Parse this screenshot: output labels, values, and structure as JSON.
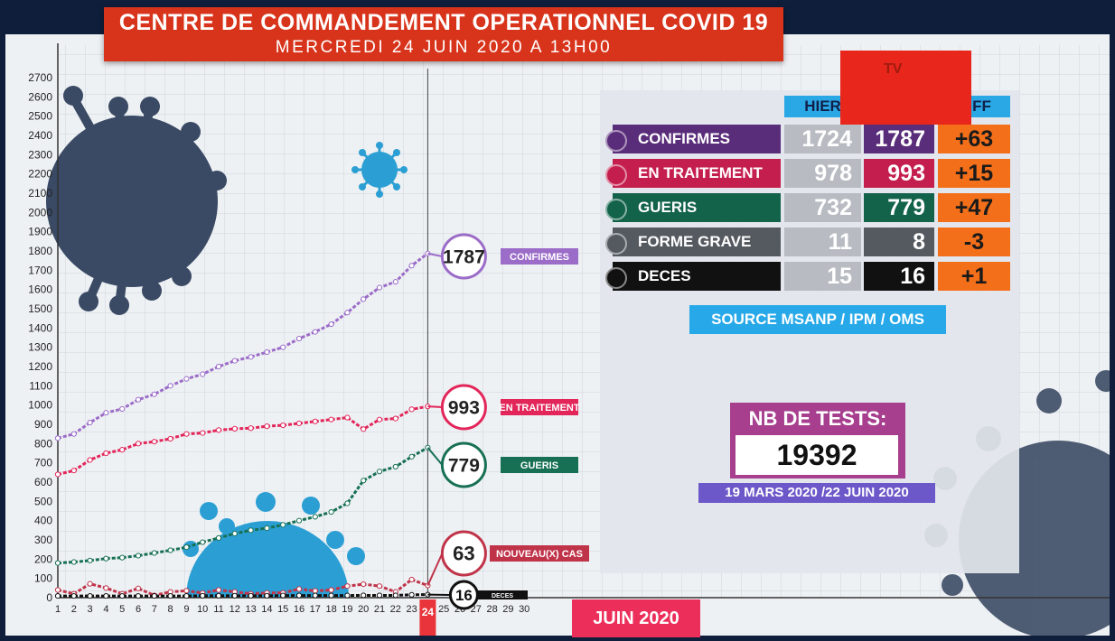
{
  "header": {
    "title": "CENTRE DE COMMANDEMENT OPERATIONNEL COVID 19",
    "subtitle": "MERCREDI 24 JUIN 2020 A 13H00"
  },
  "logo": {
    "text": "TV"
  },
  "colors": {
    "confirmes": "#7a4aa0",
    "traitement": "#e2265a",
    "gueris": "#177053",
    "nouveaux": "#c0344a",
    "deces": "#111111",
    "diff": "#f36f1a",
    "header_blue": "#2aa8e6",
    "virus_dark": "#3a4a64",
    "virus_blue": "#2b9fd4"
  },
  "table": {
    "headers": {
      "yesterday": "HIER",
      "diff": "DIFF"
    },
    "rows": [
      {
        "label": "CONFIRMES",
        "yesterday": "1724",
        "today": "1787",
        "diff": "+63",
        "color": "#5a2d7a"
      },
      {
        "label": "EN TRAITEMENT",
        "yesterday": "978",
        "today": "993",
        "diff": "+15",
        "color": "#c41e4e"
      },
      {
        "label": "GUERIS",
        "yesterday": "732",
        "today": "779",
        "diff": "+47",
        "color": "#13624a"
      },
      {
        "label": "FORME GRAVE",
        "yesterday": "11",
        "today": "8",
        "diff": "-3",
        "color": "#555a60"
      },
      {
        "label": "DECES",
        "yesterday": "15",
        "today": "16",
        "diff": "+1",
        "color": "#111111"
      }
    ],
    "source": "SOURCE MSANP / IPM / OMS"
  },
  "tests": {
    "label": "NB DE TESTS:",
    "value": "19392",
    "period": "19 MARS 2020 /22 JUIN 2020"
  },
  "month_label": "JUIN 2020",
  "chart_data": {
    "type": "line",
    "x": [
      1,
      2,
      3,
      4,
      5,
      6,
      7,
      8,
      9,
      10,
      11,
      12,
      13,
      14,
      15,
      16,
      17,
      18,
      19,
      20,
      21,
      22,
      23,
      24
    ],
    "x_ticks": [
      "1",
      "2",
      "3",
      "4",
      "5",
      "6",
      "7",
      "8",
      "9",
      "10",
      "11",
      "12",
      "13",
      "14",
      "15",
      "16",
      "17",
      "18",
      "19",
      "20",
      "21",
      "22",
      "23",
      "24",
      "25",
      "26",
      "27",
      "28",
      "29",
      "30"
    ],
    "xlim": [
      1,
      30
    ],
    "highlighted_x": "24",
    "ylim": [
      0,
      2700
    ],
    "y_ticks": [
      0,
      100,
      200,
      300,
      400,
      500,
      600,
      700,
      800,
      900,
      1000,
      1100,
      1200,
      1300,
      1400,
      1500,
      1600,
      1700,
      1800,
      1900,
      2000,
      2100,
      2200,
      2300,
      2400,
      2500,
      2600,
      2700
    ],
    "series": [
      {
        "name": "CONFIRMES",
        "end_label": "1787",
        "color": "#9b6cc8",
        "values": [
          828,
          850,
          909,
          960,
          980,
          1028,
          1056,
          1100,
          1136,
          1160,
          1200,
          1230,
          1250,
          1275,
          1300,
          1345,
          1380,
          1420,
          1480,
          1550,
          1610,
          1640,
          1724,
          1787
        ]
      },
      {
        "name": "EN TRAITEMENT",
        "end_label": "993",
        "color": "#e2265a",
        "values": [
          640,
          660,
          715,
          750,
          768,
          800,
          810,
          825,
          850,
          855,
          870,
          877,
          880,
          890,
          895,
          905,
          915,
          925,
          935,
          875,
          925,
          930,
          978,
          993
        ]
      },
      {
        "name": "GUERIS",
        "end_label": "779",
        "color": "#177053",
        "values": [
          180,
          185,
          193,
          203,
          208,
          218,
          232,
          246,
          262,
          288,
          310,
          333,
          350,
          361,
          378,
          400,
          420,
          445,
          490,
          608,
          655,
          680,
          732,
          779
        ]
      },
      {
        "name": "NOUVEAU(X) CAS",
        "end_label": "63",
        "color": "#c0344a",
        "values": [
          40,
          20,
          72,
          50,
          20,
          48,
          12,
          30,
          36,
          24,
          40,
          30,
          20,
          25,
          25,
          45,
          35,
          40,
          60,
          70,
          60,
          30,
          94,
          63
        ]
      },
      {
        "name": "DECES",
        "end_label": "16",
        "color": "#111111",
        "values": [
          9,
          9,
          9,
          9,
          9,
          9,
          9,
          9,
          9,
          10,
          10,
          10,
          10,
          10,
          11,
          11,
          11,
          11,
          11,
          12,
          12,
          12,
          15,
          16
        ]
      }
    ]
  }
}
